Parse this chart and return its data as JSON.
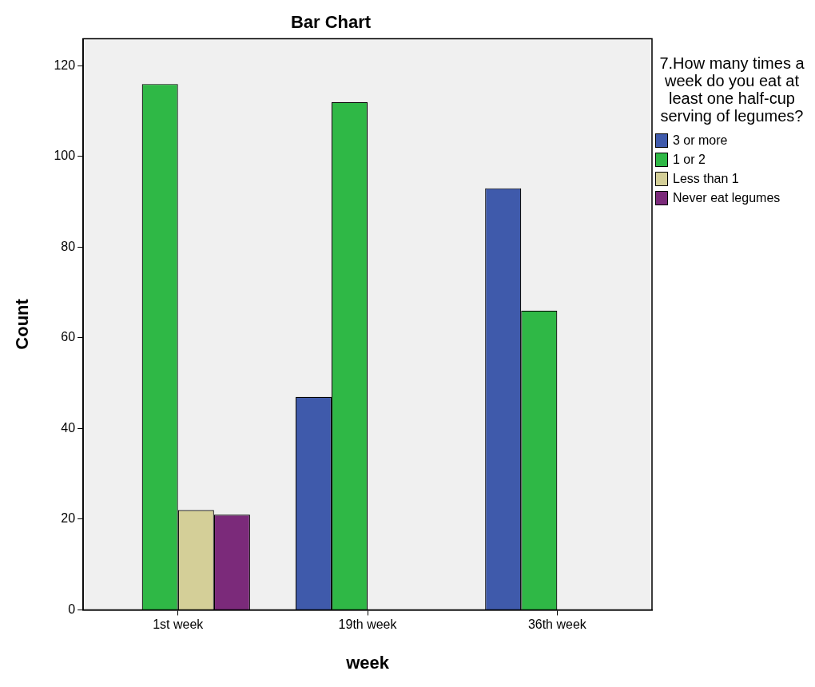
{
  "chart_data": {
    "type": "bar",
    "title": "Bar Chart",
    "xlabel": "week",
    "ylabel": "Count",
    "legend_title": "7.How many times a week do you eat at least one half-cup serving of legumes?",
    "categories": [
      "1st week",
      "19th week",
      "36th week"
    ],
    "series": [
      {
        "name": "3 or more",
        "color": "#3f5aab",
        "values": [
          null,
          47,
          93
        ]
      },
      {
        "name": "1 or 2",
        "color": "#2fb846",
        "values": [
          116,
          112,
          66
        ]
      },
      {
        "name": "Less than 1",
        "color": "#d4cf98",
        "values": [
          22,
          null,
          null
        ]
      },
      {
        "name": "Never eat  legumes",
        "color": "#7b2a7a",
        "values": [
          21,
          null,
          null
        ]
      }
    ],
    "ylim": [
      0,
      126
    ],
    "yticks": [
      0,
      20,
      40,
      60,
      80,
      100,
      120
    ],
    "grid": false,
    "legend": "right"
  }
}
